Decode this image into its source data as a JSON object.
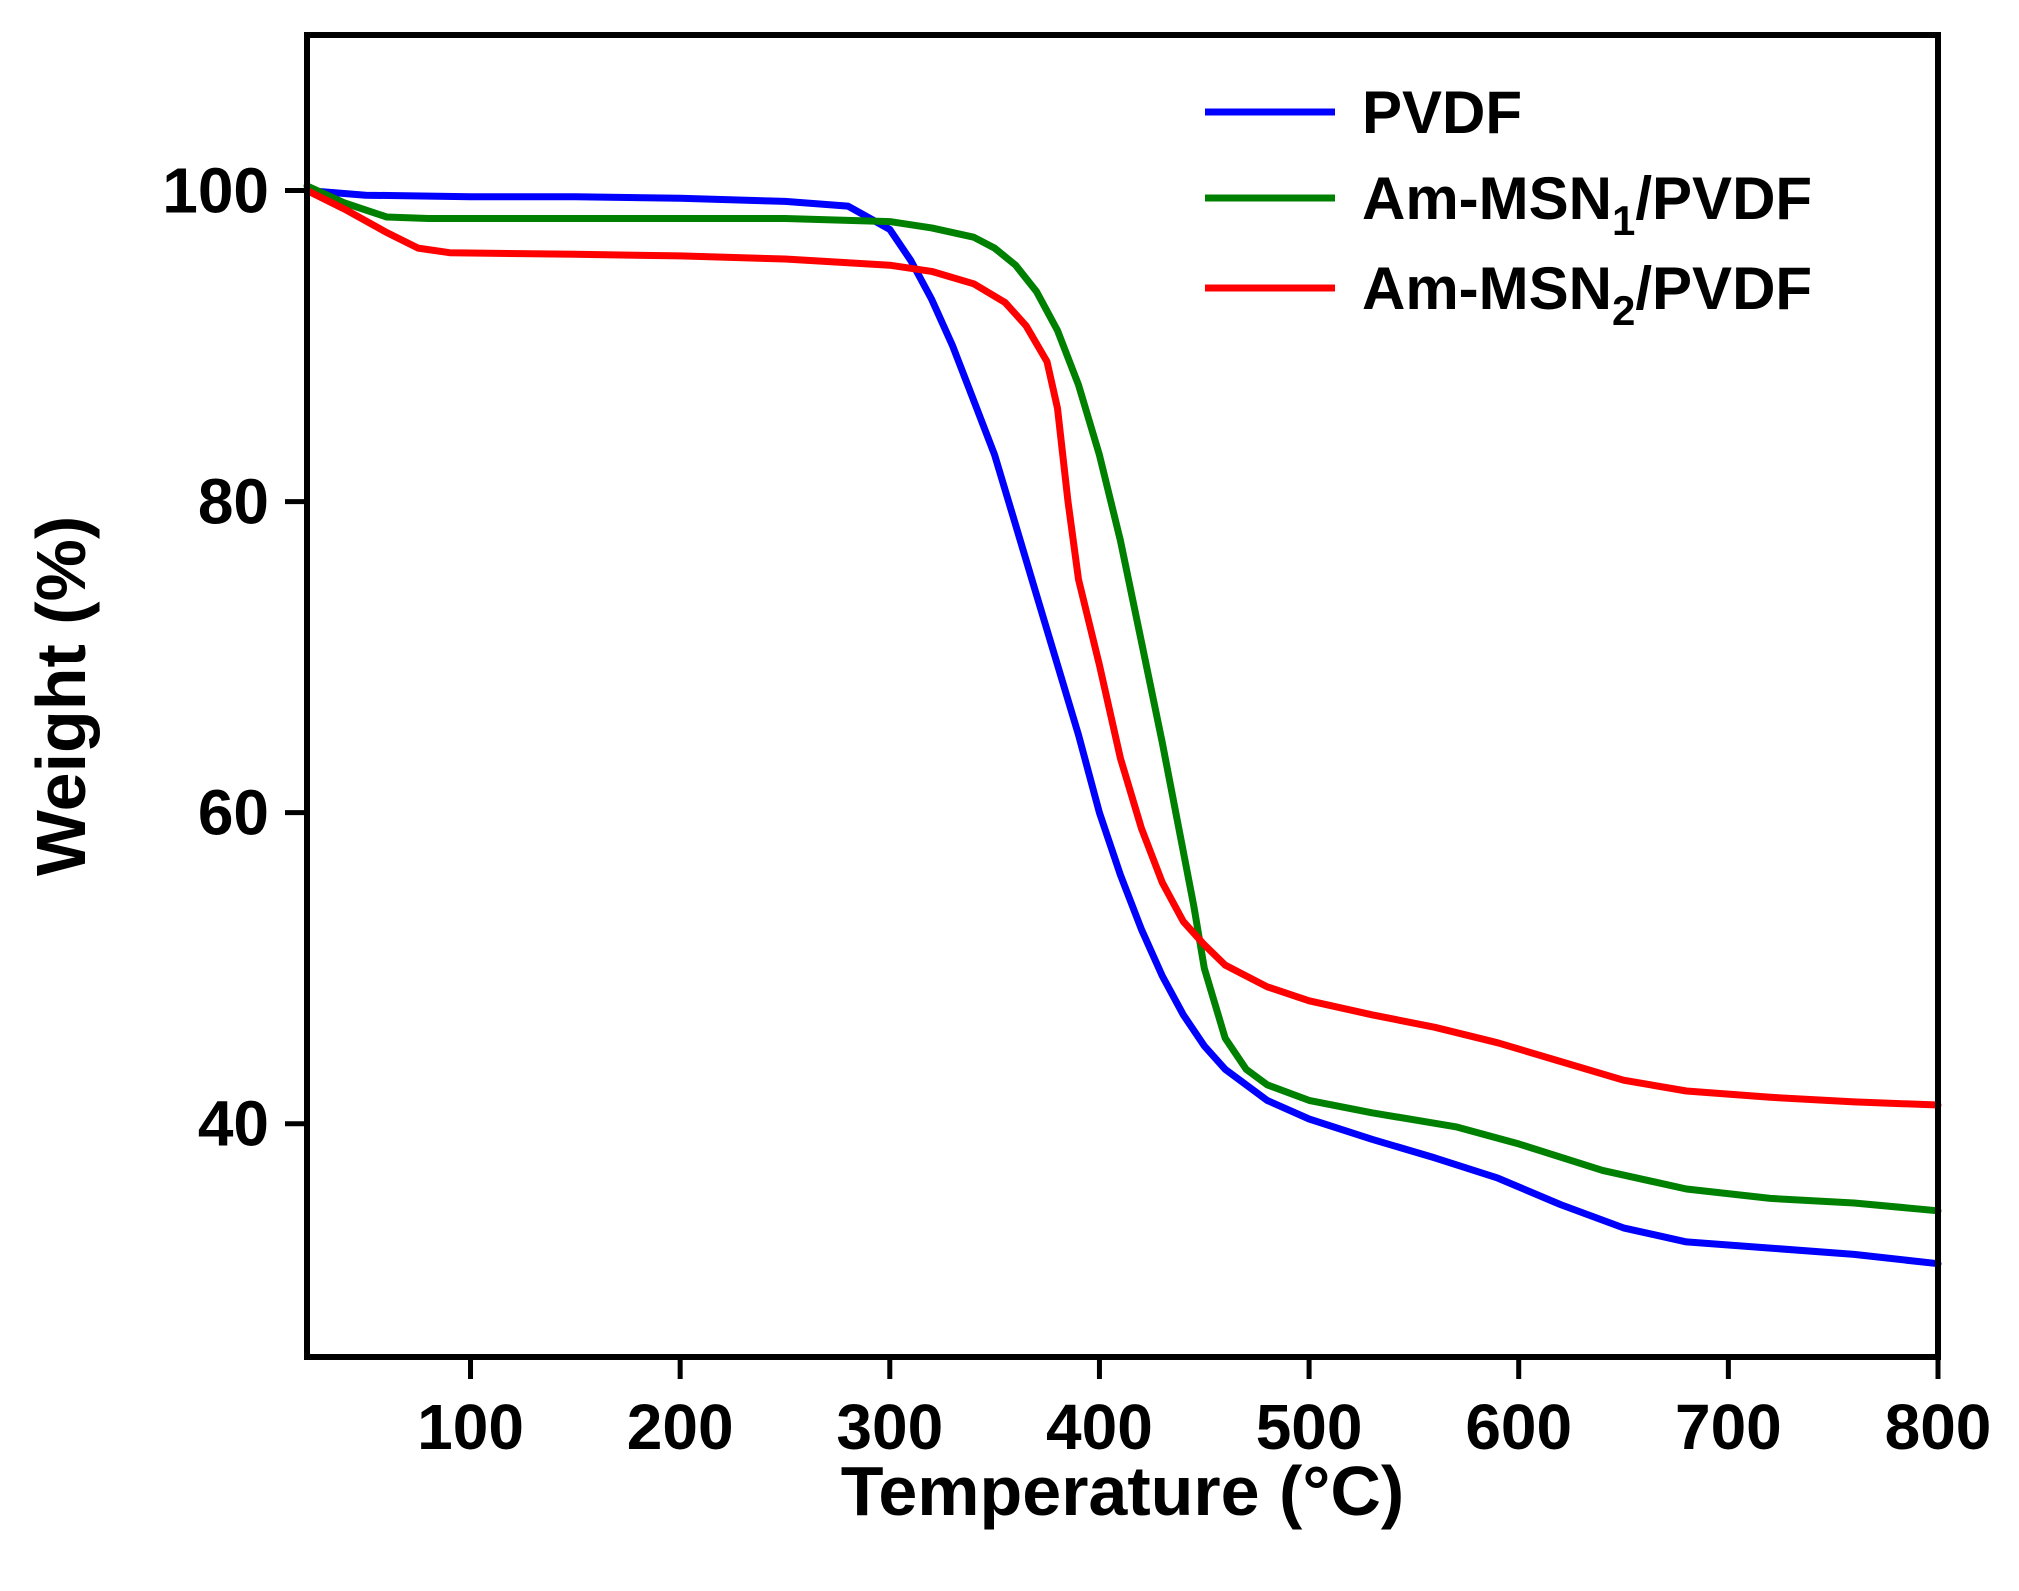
{
  "chart_data": {
    "type": "line",
    "title": "",
    "xlabel": "Temperature (°C)",
    "ylabel": "Weight (%)",
    "xlim": [
      22,
      800
    ],
    "ylim": [
      25,
      110
    ],
    "xticks": [
      100,
      200,
      300,
      400,
      500,
      600,
      700,
      800
    ],
    "yticks": [
      40,
      60,
      80,
      100
    ],
    "grid": false,
    "legend_position": "top-right",
    "series": [
      {
        "name": "PVDF",
        "legend": {
          "main": "PVDF",
          "sub": "",
          "tail": ""
        },
        "color": "#0000ff",
        "points": [
          [
            22,
            100
          ],
          [
            50,
            99.7
          ],
          [
            100,
            99.6
          ],
          [
            150,
            99.6
          ],
          [
            200,
            99.5
          ],
          [
            250,
            99.3
          ],
          [
            280,
            99
          ],
          [
            300,
            97.5
          ],
          [
            310,
            95.5
          ],
          [
            320,
            93
          ],
          [
            330,
            90
          ],
          [
            340,
            86.5
          ],
          [
            350,
            83
          ],
          [
            360,
            78.5
          ],
          [
            370,
            74
          ],
          [
            380,
            69.5
          ],
          [
            390,
            65
          ],
          [
            400,
            60
          ],
          [
            410,
            56
          ],
          [
            420,
            52.5
          ],
          [
            430,
            49.5
          ],
          [
            440,
            47
          ],
          [
            450,
            45
          ],
          [
            460,
            43.5
          ],
          [
            480,
            41.5
          ],
          [
            500,
            40.3
          ],
          [
            530,
            39
          ],
          [
            560,
            37.8
          ],
          [
            590,
            36.5
          ],
          [
            620,
            34.8
          ],
          [
            650,
            33.3
          ],
          [
            680,
            32.4
          ],
          [
            720,
            32
          ],
          [
            760,
            31.6
          ],
          [
            800,
            31
          ]
        ]
      },
      {
        "name": "Am-MSN1/PVDF",
        "legend": {
          "main": "Am-MSN",
          "sub": "1",
          "tail": "/PVDF"
        },
        "color": "#008000",
        "points": [
          [
            22,
            100.3
          ],
          [
            40,
            99.2
          ],
          [
            60,
            98.3
          ],
          [
            80,
            98.2
          ],
          [
            150,
            98.2
          ],
          [
            250,
            98.2
          ],
          [
            300,
            98
          ],
          [
            320,
            97.6
          ],
          [
            340,
            97
          ],
          [
            350,
            96.3
          ],
          [
            360,
            95.2
          ],
          [
            370,
            93.5
          ],
          [
            380,
            91
          ],
          [
            390,
            87.5
          ],
          [
            400,
            83
          ],
          [
            410,
            77.5
          ],
          [
            420,
            71
          ],
          [
            430,
            64.5
          ],
          [
            440,
            57.5
          ],
          [
            445,
            54
          ],
          [
            450,
            50
          ],
          [
            460,
            45.5
          ],
          [
            470,
            43.5
          ],
          [
            480,
            42.5
          ],
          [
            500,
            41.5
          ],
          [
            530,
            40.7
          ],
          [
            570,
            39.8
          ],
          [
            600,
            38.7
          ],
          [
            640,
            37
          ],
          [
            680,
            35.8
          ],
          [
            720,
            35.2
          ],
          [
            760,
            34.9
          ],
          [
            800,
            34.4
          ]
        ]
      },
      {
        "name": "Am-MSN2/PVDF",
        "legend": {
          "main": "Am-MSN",
          "sub": "2",
          "tail": "/PVDF"
        },
        "color": "#ff0000",
        "points": [
          [
            22,
            100
          ],
          [
            40,
            98.8
          ],
          [
            60,
            97.3
          ],
          [
            75,
            96.3
          ],
          [
            90,
            96
          ],
          [
            150,
            95.9
          ],
          [
            200,
            95.8
          ],
          [
            250,
            95.6
          ],
          [
            300,
            95.2
          ],
          [
            320,
            94.8
          ],
          [
            340,
            94
          ],
          [
            355,
            92.8
          ],
          [
            365,
            91.3
          ],
          [
            375,
            89
          ],
          [
            380,
            86
          ],
          [
            385,
            80
          ],
          [
            390,
            75
          ],
          [
            400,
            69.5
          ],
          [
            410,
            63.5
          ],
          [
            420,
            59
          ],
          [
            430,
            55.5
          ],
          [
            440,
            53
          ],
          [
            450,
            51.5
          ],
          [
            460,
            50.2
          ],
          [
            480,
            48.8
          ],
          [
            500,
            47.9
          ],
          [
            530,
            47
          ],
          [
            560,
            46.2
          ],
          [
            590,
            45.2
          ],
          [
            620,
            44
          ],
          [
            650,
            42.8
          ],
          [
            680,
            42.1
          ],
          [
            720,
            41.7
          ],
          [
            760,
            41.4
          ],
          [
            800,
            41.2
          ]
        ]
      }
    ]
  }
}
